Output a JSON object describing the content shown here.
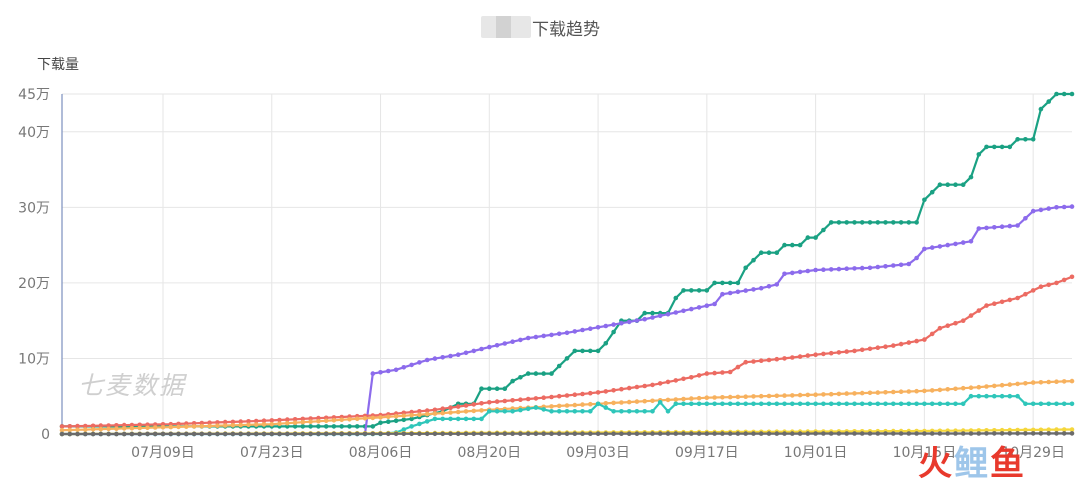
{
  "title": "下载趋势",
  "ylabel": "下载量",
  "watermark": "七麦数据",
  "logo": {
    "part1": "火",
    "part2": "鲤",
    "part3": "鱼"
  },
  "colors": {
    "background": "#ffffff",
    "grid": "#e6e6e6",
    "axis": "#7b8fbf",
    "tick": "#777777"
  },
  "chart_data": {
    "type": "line",
    "title": "下载趋势",
    "ylabel": "下载量",
    "xlabel": "",
    "x_range": [
      "06-26",
      "11-03"
    ],
    "x_ticks": [
      {
        "date": "07-09",
        "label": "07月09日"
      },
      {
        "date": "07-23",
        "label": "07月23日"
      },
      {
        "date": "08-06",
        "label": "08月06日"
      },
      {
        "date": "08-20",
        "label": "08月20日"
      },
      {
        "date": "09-03",
        "label": "09月03日"
      },
      {
        "date": "09-17",
        "label": "09月17日"
      },
      {
        "date": "10-01",
        "label": "10月01日"
      },
      {
        "date": "10-15",
        "label": "10月15日"
      },
      {
        "date": "10-29",
        "label": "10月29日"
      }
    ],
    "ylim": [
      0,
      450000
    ],
    "y_ticks": [
      {
        "value": 0,
        "label": "0"
      },
      {
        "value": 100000,
        "label": "10万"
      },
      {
        "value": 200000,
        "label": "20万"
      },
      {
        "value": 300000,
        "label": "30万"
      },
      {
        "value": 400000,
        "label": "40万"
      },
      {
        "value": 450000,
        "label": "45万"
      }
    ],
    "grid": true,
    "series": [
      {
        "color": "#1aa183",
        "points": [
          [
            "06-26",
            10000
          ],
          [
            "07-29",
            10000
          ],
          [
            "08-05",
            10000
          ],
          [
            "08-06",
            15000
          ],
          [
            "08-10",
            20000
          ],
          [
            "08-14",
            30000
          ],
          [
            "08-16",
            40000
          ],
          [
            "08-18",
            40000
          ],
          [
            "08-19",
            60000
          ],
          [
            "08-22",
            60000
          ],
          [
            "08-23",
            70000
          ],
          [
            "08-25",
            80000
          ],
          [
            "08-28",
            80000
          ],
          [
            "08-29",
            90000
          ],
          [
            "08-31",
            110000
          ],
          [
            "09-03",
            110000
          ],
          [
            "09-04",
            120000
          ],
          [
            "09-06",
            150000
          ],
          [
            "09-08",
            150000
          ],
          [
            "09-09",
            160000
          ],
          [
            "09-12",
            160000
          ],
          [
            "09-13",
            180000
          ],
          [
            "09-14",
            190000
          ],
          [
            "09-17",
            190000
          ],
          [
            "09-18",
            200000
          ],
          [
            "09-21",
            200000
          ],
          [
            "09-22",
            220000
          ],
          [
            "09-23",
            230000
          ],
          [
            "09-24",
            240000
          ],
          [
            "09-26",
            240000
          ],
          [
            "09-27",
            250000
          ],
          [
            "09-29",
            250000
          ],
          [
            "09-30",
            260000
          ],
          [
            "10-01",
            260000
          ],
          [
            "10-02",
            270000
          ],
          [
            "10-03",
            280000
          ],
          [
            "10-14",
            280000
          ],
          [
            "10-15",
            310000
          ],
          [
            "10-16",
            320000
          ],
          [
            "10-17",
            330000
          ],
          [
            "10-20",
            330000
          ],
          [
            "10-21",
            340000
          ],
          [
            "10-22",
            370000
          ],
          [
            "10-23",
            380000
          ],
          [
            "10-26",
            380000
          ],
          [
            "10-27",
            390000
          ],
          [
            "10-29",
            390000
          ],
          [
            "10-30",
            430000
          ],
          [
            "10-31",
            440000
          ],
          [
            "11-01",
            450000
          ],
          [
            "11-03",
            450000
          ]
        ]
      },
      {
        "color": "#8c6bec",
        "points": [
          [
            "06-26",
            0
          ],
          [
            "08-04",
            0
          ],
          [
            "08-05",
            80000
          ],
          [
            "08-08",
            85000
          ],
          [
            "08-12",
            98000
          ],
          [
            "08-16",
            105000
          ],
          [
            "08-20",
            115000
          ],
          [
            "08-25",
            127000
          ],
          [
            "08-30",
            134000
          ],
          [
            "09-04",
            143000
          ],
          [
            "09-09",
            152000
          ],
          [
            "09-14",
            163000
          ],
          [
            "09-18",
            172000
          ],
          [
            "09-19",
            185000
          ],
          [
            "09-24",
            193000
          ],
          [
            "09-26",
            198000
          ],
          [
            "09-27",
            212000
          ],
          [
            "10-01",
            217000
          ],
          [
            "10-08",
            220000
          ],
          [
            "10-13",
            225000
          ],
          [
            "10-14",
            233000
          ],
          [
            "10-15",
            245000
          ],
          [
            "10-18",
            250000
          ],
          [
            "10-21",
            255000
          ],
          [
            "10-22",
            272000
          ],
          [
            "10-27",
            276000
          ],
          [
            "10-29",
            295000
          ],
          [
            "11-01",
            300000
          ],
          [
            "11-03",
            301000
          ]
        ]
      },
      {
        "color": "#ec6b62",
        "points": [
          [
            "06-26",
            10000
          ],
          [
            "07-10",
            13000
          ],
          [
            "07-23",
            18000
          ],
          [
            "08-06",
            25000
          ],
          [
            "08-13",
            32000
          ],
          [
            "08-20",
            42000
          ],
          [
            "08-27",
            48000
          ],
          [
            "09-03",
            55000
          ],
          [
            "09-10",
            65000
          ],
          [
            "09-15",
            75000
          ],
          [
            "09-17",
            80000
          ],
          [
            "09-20",
            82000
          ],
          [
            "09-22",
            95000
          ],
          [
            "09-27",
            100000
          ],
          [
            "10-01",
            105000
          ],
          [
            "10-06",
            110000
          ],
          [
            "10-11",
            117000
          ],
          [
            "10-15",
            125000
          ],
          [
            "10-17",
            140000
          ],
          [
            "10-20",
            150000
          ],
          [
            "10-23",
            170000
          ],
          [
            "10-27",
            180000
          ],
          [
            "10-30",
            195000
          ],
          [
            "11-01",
            200000
          ],
          [
            "11-03",
            208000
          ]
        ]
      },
      {
        "color": "#f7b15e",
        "points": [
          [
            "06-26",
            5000
          ],
          [
            "07-23",
            13000
          ],
          [
            "08-06",
            22000
          ],
          [
            "08-20",
            32000
          ],
          [
            "09-03",
            40000
          ],
          [
            "09-17",
            48000
          ],
          [
            "10-01",
            52000
          ],
          [
            "10-15",
            57000
          ],
          [
            "10-22",
            62000
          ],
          [
            "10-29",
            68000
          ],
          [
            "11-03",
            70000
          ]
        ]
      },
      {
        "color": "#2fc6ba",
        "points": [
          [
            "06-26",
            0
          ],
          [
            "07-29",
            0
          ],
          [
            "08-06",
            0
          ],
          [
            "08-08",
            2000
          ],
          [
            "08-10",
            10000
          ],
          [
            "08-13",
            20000
          ],
          [
            "08-19",
            20000
          ],
          [
            "08-20",
            30000
          ],
          [
            "08-23",
            30000
          ],
          [
            "08-26",
            35000
          ],
          [
            "08-28",
            30000
          ],
          [
            "09-02",
            30000
          ],
          [
            "09-03",
            40000
          ],
          [
            "09-05",
            30000
          ],
          [
            "09-10",
            30000
          ],
          [
            "09-11",
            42000
          ],
          [
            "09-12",
            30000
          ],
          [
            "09-13",
            40000
          ],
          [
            "10-20",
            40000
          ],
          [
            "10-21",
            50000
          ],
          [
            "10-27",
            50000
          ],
          [
            "10-28",
            40000
          ],
          [
            "11-03",
            40000
          ]
        ]
      },
      {
        "color": "#f5d73c",
        "points": [
          [
            "06-26",
            0
          ],
          [
            "08-06",
            1000
          ],
          [
            "09-17",
            2500
          ],
          [
            "10-15",
            4000
          ],
          [
            "11-03",
            6000
          ]
        ]
      },
      {
        "color": "#6b6b6b",
        "points": [
          [
            "06-26",
            0
          ],
          [
            "11-03",
            800
          ]
        ]
      }
    ]
  }
}
